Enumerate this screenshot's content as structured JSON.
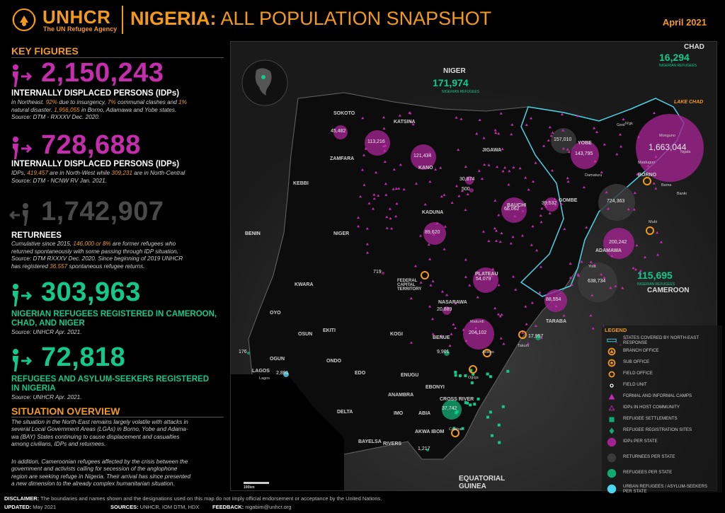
{
  "header": {
    "org_name": "UNHCR",
    "org_sub": "The UN Refugee Agency",
    "title_bold": "NIGERIA:",
    "title_rest": " ALL POPULATION SNAPSHOT",
    "date": "April 2021"
  },
  "key_figures": {
    "heading": "KEY FIGURES",
    "idps_ne": {
      "value": "2,150,243",
      "label": "INTERNALLY DISPLACED PERSONS (IDPs)",
      "desc_1a": "in Northeast. ",
      "pct_insurgency": "92%",
      "desc_1b": " due to insurgency, ",
      "pct_communal": "7%",
      "desc_1c": " communal clashes and ",
      "pct_disaster": "1%",
      "desc_2a": "natural disaster. ",
      "bay_count": "1,956,055",
      "desc_2b": " in Borno, Adamawa and Yobe states.",
      "source": "Source: DTM - RXXXV Dec. 2020."
    },
    "idps_nw": {
      "value": "728,688",
      "label": "INTERNALLY DISPLACED PERSONS (IDPs)",
      "desc_a": "IDPs, ",
      "nw_count": "419,457",
      "desc_b": " are in North-West while ",
      "nc_count": "309,231",
      "desc_c": " are in North-Central",
      "source": "Source: DTM - NCNW RV Jan. 2021."
    },
    "returnees": {
      "value": "1,742,907",
      "label": "RETURNEES",
      "desc_1": "Cumulative since 2015, ",
      "former_refugees": "146,000 or 8%",
      "desc_2": " are former refugees who",
      "desc_3": "returned spontaneously with some passing through IDP situation.",
      "desc_4": "Source: DTM RXXXV Dec. 2020. Since beginning of 2019 UNHCR",
      "desc_5a": "has registered ",
      "spontaneous": "36,557",
      "desc_5b": " spontaneous refugee returns."
    },
    "nigerian_refugees": {
      "value": "303,963",
      "label_1": "NIGERIAN REFUGEES REGISTERED IN CAMEROON,",
      "label_2": "CHAD, AND NIGER",
      "source": "Source: UNHCR Apr. 2021."
    },
    "refugees_in_nigeria": {
      "value": "72,818",
      "label_1": "REFUGEES AND ASYLUM-SEEKERS REGISTERED",
      "label_2": "IN NIGERIA",
      "source": "Source: UNHCR Apr. 2021."
    }
  },
  "situation": {
    "heading": "SITUATION OVERVIEW",
    "para1": [
      "The situation in the North-East remains largely volatile with attacks in",
      "several Local Government Areas (LGAs) in Borno, Yobe and Adama-",
      "wa (BAY) States continuing to cause displacement and casualties",
      "among civilians, IDPs and returnees."
    ],
    "para2": [
      "In addition, Cameroonian refugees affected by the crisis between the",
      "government and activists calling for secession of the anglophone",
      "region are seeking refuge in Nigeria. Their arrival has since presented",
      "a new dimension to the already complex humanitarian situation."
    ]
  },
  "map": {
    "countries": {
      "niger": "NIGER",
      "chad": "CHAD",
      "cameroon": "CAMEROON",
      "benin": "BENIN",
      "eq_guinea_1": "EQUATORIAL",
      "eq_guinea_2": "GUINEA",
      "lake_chad": "LAKE CHAD"
    },
    "external": {
      "niger_value": "171,974",
      "niger_sub": "NIGERIAN REFUGEES",
      "chad_value": "16,294",
      "chad_sub": "NIGERIAN REFUGEES",
      "cameroon_value": "115,695",
      "cameroon_sub": "NIGERIAN REFUGEES"
    },
    "states": [
      "SOKOTO",
      "ZAMFARA",
      "KATSINA",
      "KANO",
      "JIGAWA",
      "YOBE",
      "BORNO",
      "KEBBI",
      "NIGER",
      "KADUNA",
      "BAUCHI",
      "GOMBE",
      "ADAMAWA",
      "PLATEAU",
      "NASARAWA",
      "TARABA",
      "KWARA",
      "OYO",
      "OSUN",
      "EKITI",
      "KOGI",
      "BENUE",
      "ONDO",
      "OGUN",
      "EDO",
      "ENUGU",
      "EBONYI",
      "ANAMBRA",
      "DELTA",
      "IMO",
      "ABIA",
      "AKWA IBOM",
      "BAYELSA",
      "RIVERS",
      "CROSS RIVER",
      "FEDERAL CAPITAL TERRITORY",
      "LAGOS"
    ],
    "bubbles": [
      {
        "name": "Borno IDPs",
        "value": "1,663,044"
      },
      {
        "name": "Borno returnees",
        "value": "724,363"
      },
      {
        "name": "Adamawa IDPs",
        "value": "200,242"
      },
      {
        "name": "Adamawa returnees",
        "value": "638,734"
      },
      {
        "name": "Yobe returnees",
        "value": "157,010"
      },
      {
        "name": "Yobe IDPs",
        "value": "143,795"
      },
      {
        "name": "Sokoto",
        "value": "45,482"
      },
      {
        "name": "Zamfara",
        "value": "113,216"
      },
      {
        "name": "Katsina",
        "value": "121,434"
      },
      {
        "name": "Kano",
        "value": "30,874"
      },
      {
        "name": "Kano 2",
        "value": "500"
      },
      {
        "name": "Bauchi",
        "value": "66,062"
      },
      {
        "name": "Gombe",
        "value": "39,532"
      },
      {
        "name": "Kaduna",
        "value": "89,620"
      },
      {
        "name": "Plateau",
        "value": "54,079"
      },
      {
        "name": "Taraba",
        "value": "88,554"
      },
      {
        "name": "Benue",
        "value": "204,102"
      },
      {
        "name": "Nasarawa",
        "value": "20,889"
      },
      {
        "name": "FCT",
        "value": "719"
      },
      {
        "name": "Benue refugees",
        "value": "9,901"
      },
      {
        "name": "Taraba refugees",
        "value": "17,957"
      },
      {
        "name": "Cross River",
        "value": "37,742"
      },
      {
        "name": "Ogun",
        "value": "176"
      },
      {
        "name": "Lagos",
        "value": "2,891"
      },
      {
        "name": "Akwa Ibom",
        "value": "1,217"
      }
    ],
    "towns": {
      "maiduguri": "Maiduguri",
      "monguno": "Monguno",
      "damaturu": "Damaturu",
      "ngala": "Ngala",
      "bama": "Bama",
      "banki": "Banki",
      "mubi": "Mubi",
      "yola": "Yola",
      "ngk": "N'gk",
      "makurdi": "Makurdi",
      "takum": "Takum",
      "adikpo": "Adikpo",
      "ogoja": "Ogoja",
      "calabar": "Calabar",
      "lagos": "Lagos",
      "geidam": "Geid"
    },
    "scale": "100km"
  },
  "legend": {
    "title": "LEGEND",
    "items": [
      "STATES COVERED BY NORTH-EAST RESPONSE",
      "BRANCH OFFICE",
      "SUB OFFICE",
      "FIELD OFFICE",
      "FIELD UNIT",
      "FORMAL AND INFORMAL CAMPS",
      "IDPs IN HOST COMMUNITY",
      "REFUGEE SETTLEMENTS",
      "REFUGEE REGISTRATION SITES",
      "IDPs PER STATE",
      "RETURNEES PER STATE",
      "REFUGEES PER STATE",
      "URBAN REFUGEES / ASYLUM-SEEKERS PER STATE"
    ],
    "colors": {
      "idp": "#a0238f",
      "returnee": "#3a3a3a",
      "refugee": "#13a870",
      "urban": "#4dd6f0",
      "orange": "#f39a1b",
      "ne_border": "#4fd1e3"
    }
  },
  "footer": {
    "disclaimer_label": "DISCLAIMER:",
    "disclaimer": " The boundaries and names shown and the designations used on this map do not imply official endorsement or acceptance by the United Nations.",
    "updated_label": "UPDATED:",
    "updated": " May 2021",
    "sources_label": "SOURCES:",
    "sources": " UNHCR, IOM DTM, HDX",
    "feedback_label": "FEEDBACK:",
    "feedback": " nigabim@unhcr.org"
  }
}
